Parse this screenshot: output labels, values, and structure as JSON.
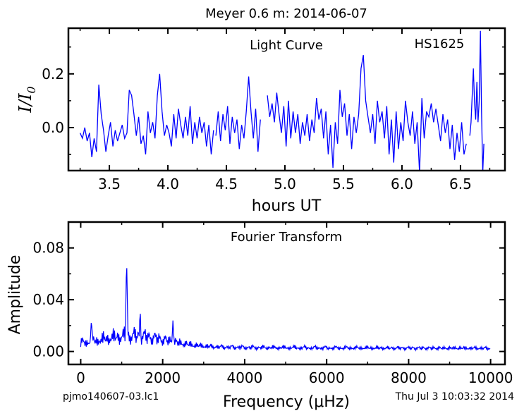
{
  "figure": {
    "title": "Meyer 0.6 m:  2014-06-07",
    "footer_left": "pjmo140607-03.lc1",
    "footer_right": "Thu Jul  3 10:03:32 2014"
  },
  "chart_data": [
    {
      "type": "line",
      "annotation_center": "Light Curve",
      "annotation_right": "HS1625",
      "xlabel": "hours UT",
      "ylabel_main": "I/I",
      "ylabel_sub": "0",
      "xlim": [
        3.15,
        6.88
      ],
      "ylim": [
        -0.16,
        0.37
      ],
      "xticks": [
        3.5,
        4.0,
        4.5,
        5.0,
        5.5,
        6.0,
        6.5
      ],
      "xtick_labels": [
        "3.5",
        "4.0",
        "4.5",
        "5.0",
        "5.5",
        "6.0",
        "6.5"
      ],
      "yticks": [
        0.0,
        0.2
      ],
      "ytick_labels": [
        "0.0",
        "0.2"
      ],
      "line_color": "#0000ff",
      "grid": false,
      "segments": [
        [
          [
            3.25,
            -0.02
          ],
          [
            3.27,
            -0.04
          ],
          [
            3.29,
            0.0
          ],
          [
            3.31,
            -0.05
          ],
          [
            3.33,
            -0.02
          ],
          [
            3.35,
            -0.11
          ],
          [
            3.37,
            -0.04
          ],
          [
            3.39,
            -0.09
          ],
          [
            3.41,
            0.16
          ],
          [
            3.43,
            0.05
          ],
          [
            3.45,
            -0.01
          ],
          [
            3.47,
            -0.09
          ],
          [
            3.49,
            -0.03
          ],
          [
            3.51,
            0.02
          ],
          [
            3.53,
            -0.07
          ],
          [
            3.55,
            -0.01
          ],
          [
            3.57,
            -0.05
          ],
          [
            3.59,
            -0.02
          ],
          [
            3.61,
            0.01
          ],
          [
            3.63,
            -0.04
          ],
          [
            3.65,
            -0.02
          ],
          [
            3.67,
            0.14
          ],
          [
            3.69,
            0.12
          ],
          [
            3.71,
            0.05
          ],
          [
            3.73,
            -0.03
          ],
          [
            3.75,
            0.04
          ],
          [
            3.77,
            -0.06
          ],
          [
            3.79,
            -0.03
          ],
          [
            3.81,
            -0.1
          ],
          [
            3.83,
            0.06
          ],
          [
            3.85,
            -0.02
          ],
          [
            3.87,
            0.02
          ],
          [
            3.89,
            -0.04
          ],
          [
            3.91,
            0.12
          ],
          [
            3.93,
            0.2
          ],
          [
            3.95,
            0.06
          ],
          [
            3.97,
            -0.03
          ],
          [
            3.99,
            0.01
          ],
          [
            4.01,
            -0.02
          ],
          [
            4.03,
            -0.07
          ],
          [
            4.05,
            0.05
          ],
          [
            4.07,
            -0.04
          ],
          [
            4.09,
            0.07
          ],
          [
            4.11,
            0.01
          ],
          [
            4.13,
            -0.04
          ],
          [
            4.15,
            0.04
          ],
          [
            4.17,
            -0.03
          ],
          [
            4.19,
            0.08
          ],
          [
            4.21,
            -0.06
          ],
          [
            4.23,
            0.02
          ],
          [
            4.25,
            -0.04
          ],
          [
            4.27,
            0.04
          ],
          [
            4.29,
            -0.02
          ],
          [
            4.31,
            0.02
          ],
          [
            4.33,
            -0.07
          ],
          [
            4.35,
            0.01
          ],
          [
            4.37,
            -0.1
          ],
          [
            4.39,
            -0.01
          ]
        ],
        [
          [
            4.41,
            -0.03
          ],
          [
            4.43,
            0.06
          ],
          [
            4.45,
            -0.05
          ],
          [
            4.47,
            0.05
          ],
          [
            4.49,
            -0.01
          ],
          [
            4.51,
            0.08
          ],
          [
            4.53,
            -0.06
          ],
          [
            4.55,
            0.04
          ],
          [
            4.57,
            -0.02
          ],
          [
            4.59,
            0.03
          ],
          [
            4.61,
            -0.08
          ],
          [
            4.63,
            0.01
          ],
          [
            4.65,
            -0.04
          ],
          [
            4.67,
            0.06
          ],
          [
            4.69,
            0.19
          ],
          [
            4.71,
            0.06
          ],
          [
            4.73,
            -0.04
          ],
          [
            4.75,
            0.07
          ],
          [
            4.77,
            -0.09
          ],
          [
            4.79,
            0.03
          ]
        ],
        [
          [
            4.85,
            0.12
          ],
          [
            4.87,
            0.04
          ],
          [
            4.89,
            0.09
          ],
          [
            4.91,
            0.02
          ],
          [
            4.93,
            0.13
          ],
          [
            4.95,
            0.05
          ],
          [
            4.97,
            -0.02
          ],
          [
            4.99,
            0.08
          ],
          [
            5.01,
            -0.07
          ],
          [
            5.03,
            0.1
          ],
          [
            5.05,
            -0.04
          ],
          [
            5.07,
            0.06
          ],
          [
            5.09,
            -0.02
          ],
          [
            5.11,
            0.05
          ],
          [
            5.13,
            -0.06
          ],
          [
            5.15,
            0.02
          ],
          [
            5.17,
            -0.03
          ],
          [
            5.19,
            0.05
          ],
          [
            5.21,
            -0.05
          ],
          [
            5.23,
            0.03
          ],
          [
            5.25,
            -0.02
          ],
          [
            5.27,
            0.11
          ],
          [
            5.29,
            0.03
          ],
          [
            5.31,
            0.07
          ],
          [
            5.33,
            -0.04
          ],
          [
            5.35,
            0.06
          ],
          [
            5.37,
            -0.1
          ],
          [
            5.39,
            0.01
          ],
          [
            5.41,
            -0.15
          ],
          [
            5.43,
            0.02
          ],
          [
            5.45,
            -0.06
          ],
          [
            5.47,
            0.14
          ],
          [
            5.49,
            0.04
          ],
          [
            5.51,
            0.09
          ],
          [
            5.53,
            -0.03
          ],
          [
            5.55,
            0.05
          ],
          [
            5.57,
            -0.08
          ],
          [
            5.59,
            0.04
          ],
          [
            5.61,
            -0.02
          ],
          [
            5.63,
            0.05
          ],
          [
            5.65,
            0.22
          ],
          [
            5.67,
            0.27
          ],
          [
            5.69,
            0.1
          ],
          [
            5.71,
            0.04
          ],
          [
            5.73,
            -0.02
          ],
          [
            5.75,
            0.05
          ],
          [
            5.77,
            -0.06
          ],
          [
            5.79,
            0.1
          ],
          [
            5.81,
            0.02
          ],
          [
            5.83,
            0.06
          ],
          [
            5.85,
            -0.04
          ],
          [
            5.87,
            0.08
          ],
          [
            5.89,
            -0.1
          ],
          [
            5.91,
            0.03
          ],
          [
            5.93,
            -0.13
          ],
          [
            5.95,
            0.06
          ],
          [
            5.97,
            -0.08
          ],
          [
            5.99,
            0.02
          ],
          [
            6.01,
            -0.05
          ],
          [
            6.03,
            0.1
          ],
          [
            6.05,
            0.02
          ],
          [
            6.07,
            -0.03
          ],
          [
            6.09,
            0.06
          ],
          [
            6.11,
            -0.06
          ],
          [
            6.13,
            0.02
          ],
          [
            6.15,
            -0.17
          ],
          [
            6.17,
            0.11
          ],
          [
            6.19,
            -0.04
          ],
          [
            6.21,
            0.06
          ],
          [
            6.23,
            0.04
          ],
          [
            6.25,
            0.09
          ],
          [
            6.27,
            0.02
          ],
          [
            6.29,
            0.07
          ],
          [
            6.31,
            0.01
          ],
          [
            6.33,
            -0.05
          ],
          [
            6.35,
            0.05
          ],
          [
            6.37,
            -0.02
          ],
          [
            6.39,
            0.03
          ],
          [
            6.41,
            -0.08
          ],
          [
            6.43,
            0.01
          ],
          [
            6.45,
            -0.12
          ],
          [
            6.47,
            -0.02
          ],
          [
            6.49,
            -0.09
          ],
          [
            6.51,
            0.02
          ],
          [
            6.53,
            -0.1
          ],
          [
            6.55,
            -0.06
          ]
        ],
        [
          [
            6.58,
            -0.03
          ],
          [
            6.59,
            0.02
          ],
          [
            6.61,
            0.22
          ],
          [
            6.62,
            0.09
          ],
          [
            6.63,
            0.03
          ],
          [
            6.64,
            0.17
          ],
          [
            6.65,
            0.02
          ],
          [
            6.66,
            0.1
          ],
          [
            6.67,
            0.36
          ],
          [
            6.68,
            0.06
          ],
          [
            6.69,
            -0.17
          ],
          [
            6.7,
            -0.06
          ]
        ]
      ]
    },
    {
      "type": "line",
      "annotation_center": "Fourier Transform",
      "xlabel": "Frequency (μHz)",
      "ylabel": "Amplitude",
      "xlim": [
        -300,
        10350
      ],
      "ylim": [
        -0.01,
        0.1
      ],
      "xticks": [
        0,
        2000,
        4000,
        6000,
        8000,
        10000
      ],
      "xtick_labels": [
        "0",
        "2000",
        "4000",
        "6000",
        "8000",
        "10000"
      ],
      "yticks": [
        0.0,
        0.04,
        0.08
      ],
      "ytick_labels": [
        "0.00",
        "0.04",
        "0.08"
      ],
      "line_color": "#0000ff",
      "grid": false,
      "peak_frequency": 1120,
      "peak_amplitude": 0.067
    }
  ]
}
